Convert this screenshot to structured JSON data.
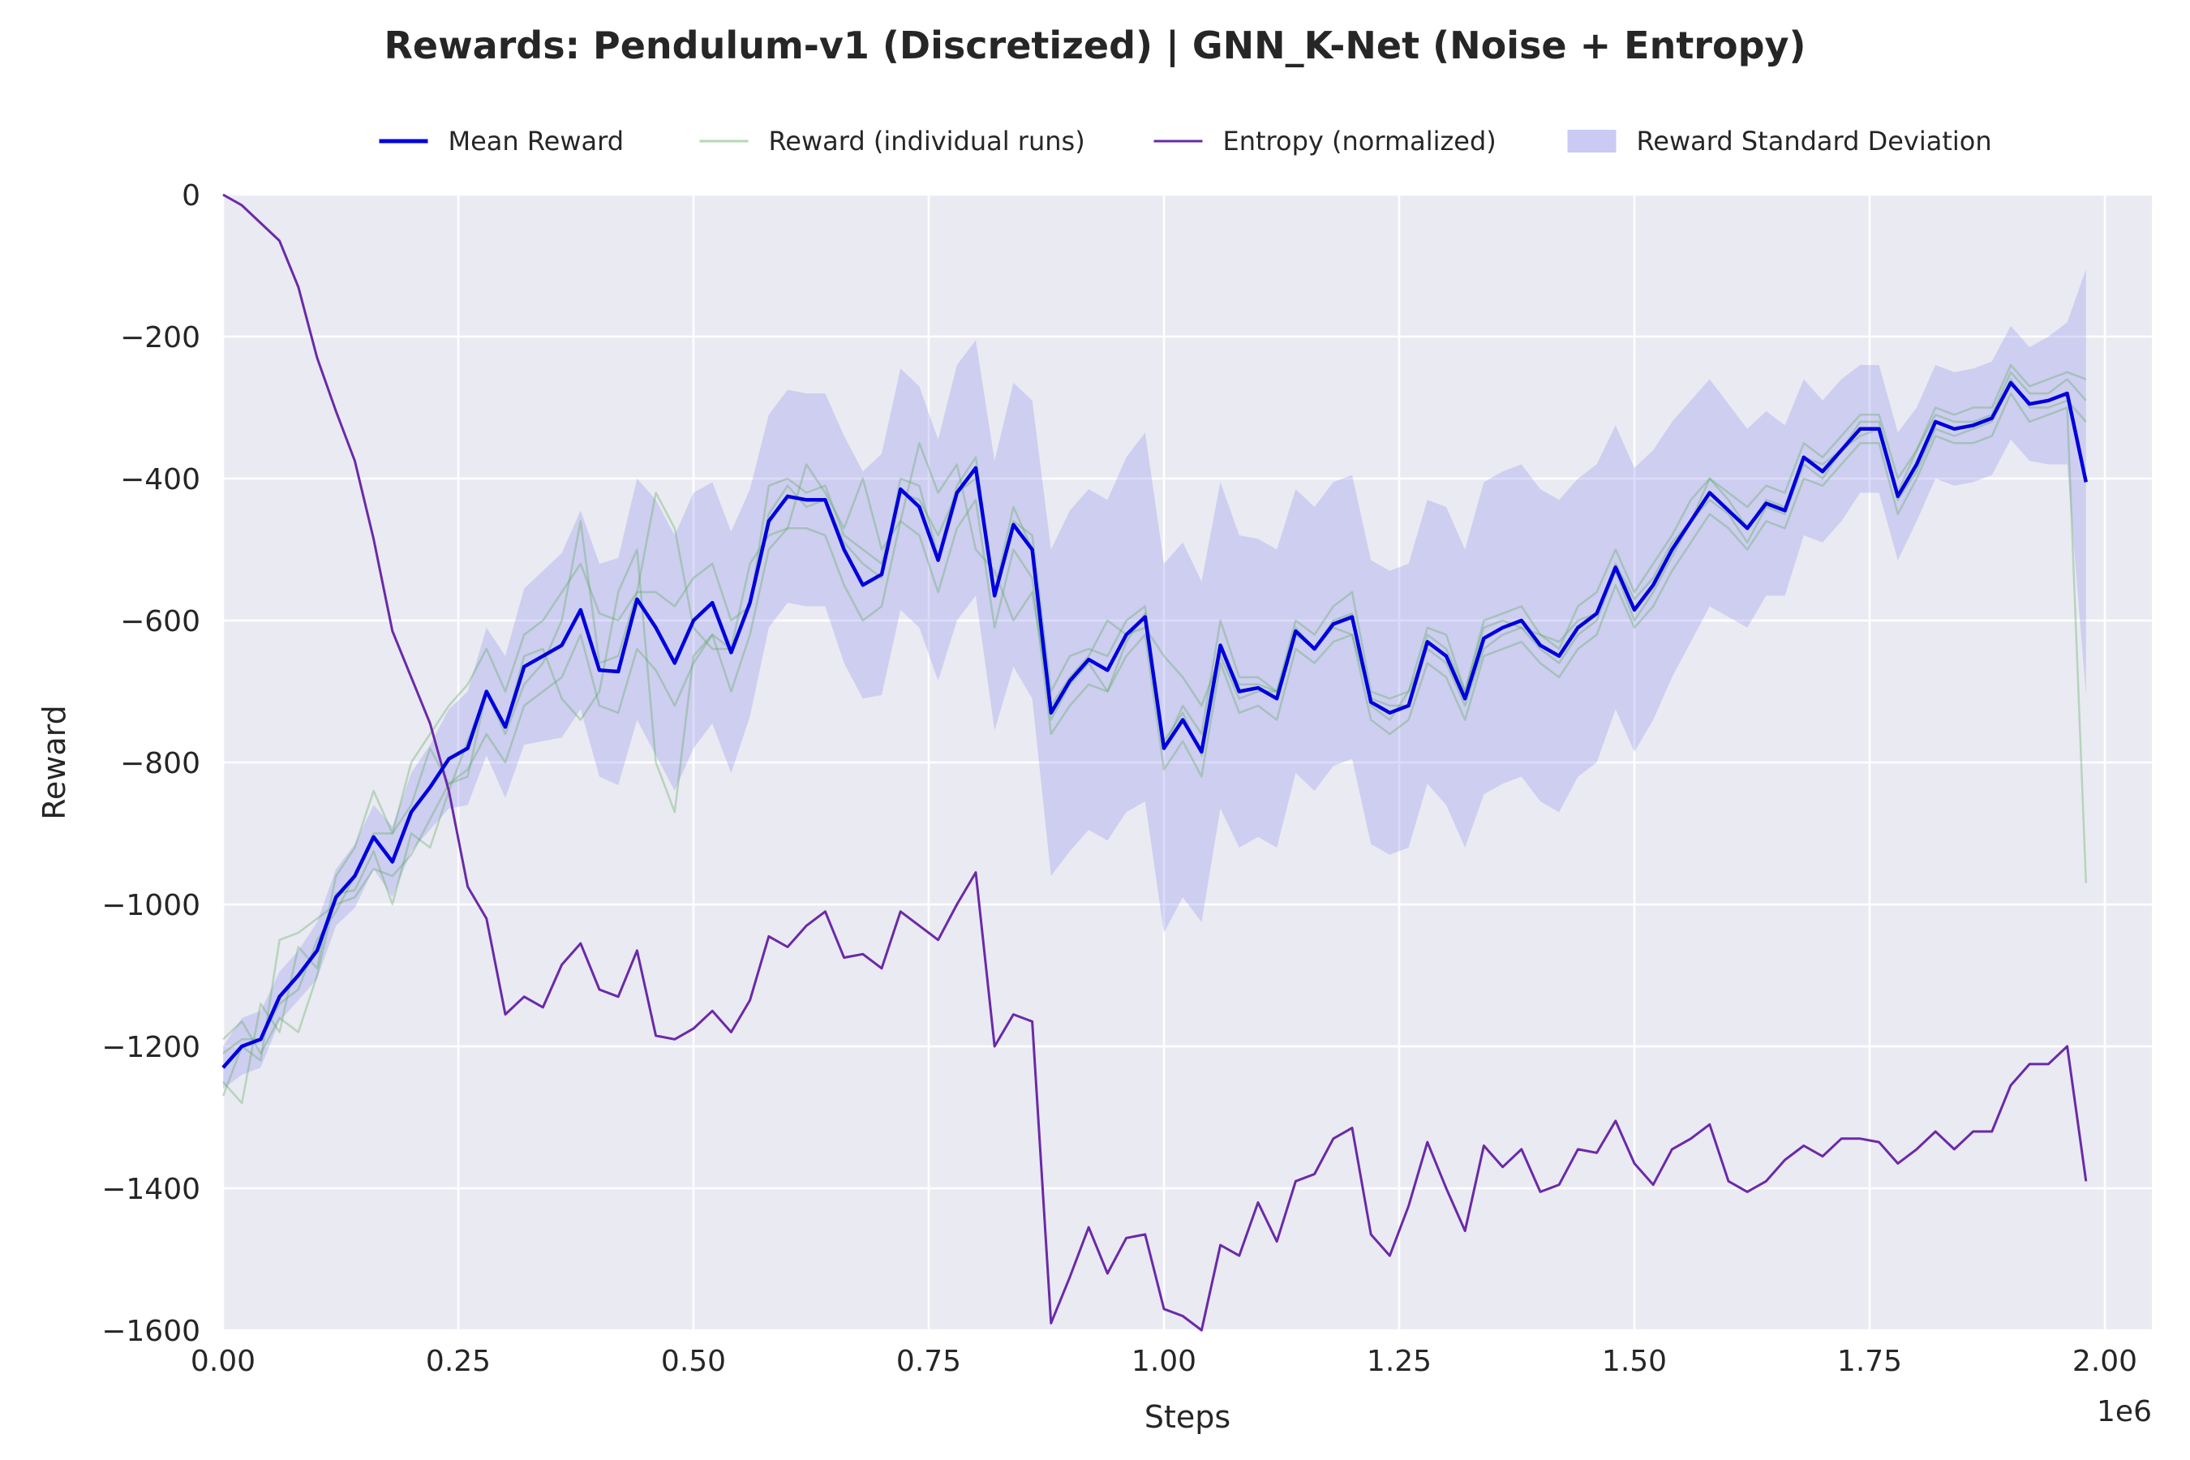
{
  "chart_data": {
    "type": "line",
    "title": "Rewards: Pendulum-v1 (Discretized) | GNN_K-Net (Noise + Entropy)",
    "xlabel": "Steps",
    "ylabel": "Reward",
    "x_offset_label": "1e6",
    "xlim": [
      0,
      2050000
    ],
    "ylim": [
      -1600,
      0
    ],
    "xticks": [
      0,
      250000,
      500000,
      750000,
      1000000,
      1250000,
      1500000,
      1750000,
      2000000
    ],
    "xtick_labels": [
      "0.00",
      "0.25",
      "0.50",
      "0.75",
      "1.00",
      "1.25",
      "1.50",
      "1.75",
      "2.00"
    ],
    "yticks": [
      0,
      -200,
      -400,
      -600,
      -800,
      -1000,
      -1200,
      -1400,
      -1600
    ],
    "ytick_labels": [
      "0",
      "−200",
      "−400",
      "−600",
      "−800",
      "−1000",
      "−1200",
      "−1400",
      "−1600"
    ],
    "grid": true,
    "legend_position": "top-center",
    "legend": [
      {
        "label": "Mean Reward",
        "kind": "line",
        "color": "#0000dd"
      },
      {
        "label": "Reward (individual runs)",
        "kind": "line",
        "color": "#7fbf7f"
      },
      {
        "label": "Entropy (normalized)",
        "kind": "line",
        "color": "#6a2aa8"
      },
      {
        "label": "Reward Standard Deviation",
        "kind": "band",
        "color": "#b4b4f0"
      }
    ],
    "colors": {
      "mean": "#0000dd",
      "runs": "#5aa85a",
      "entropy": "#6a2aa8",
      "band": "#9a9aee",
      "plot_bg": "#eaeaf2",
      "grid": "#ffffff"
    },
    "x_start": 0,
    "x_step": 20000,
    "series": [
      {
        "name": "Mean Reward",
        "values": [
          -1230,
          -1200,
          -1190,
          -1130,
          -1100,
          -1065,
          -990,
          -960,
          -905,
          -940,
          -870,
          -835,
          -795,
          -780,
          -700,
          -750,
          -665,
          -650,
          -635,
          -585,
          -670,
          -672,
          -570,
          -610,
          -660,
          -600,
          -575,
          -645,
          -575,
          -460,
          -425,
          -430,
          -430,
          -500,
          -550,
          -535,
          -415,
          -440,
          -515,
          -420,
          -385,
          -565,
          -465,
          -500,
          -730,
          -685,
          -655,
          -670,
          -620,
          -595,
          -780,
          -740,
          -785,
          -635,
          -700,
          -695,
          -710,
          -615,
          -640,
          -605,
          -595,
          -715,
          -730,
          -720,
          -630,
          -650,
          -710,
          -625,
          -610,
          -600,
          -635,
          -650,
          -610,
          -590,
          -525,
          -585,
          -550,
          -500,
          -460,
          -420,
          -445,
          -470,
          -435,
          -445,
          -370,
          -390,
          -360,
          -330,
          -330,
          -425,
          -380,
          -320,
          -330,
          -325,
          -315,
          -265,
          -295,
          -290,
          -280,
          -405
        ]
      },
      {
        "name": "Entropy (normalized)",
        "values": [
          0,
          -15,
          -40,
          -65,
          -130,
          -230,
          -305,
          -375,
          -485,
          -615,
          -680,
          -745,
          -840,
          -975,
          -1020,
          -1155,
          -1130,
          -1145,
          -1085,
          -1055,
          -1120,
          -1130,
          -1065,
          -1185,
          -1190,
          -1175,
          -1150,
          -1180,
          -1135,
          -1045,
          -1060,
          -1030,
          -1010,
          -1075,
          -1070,
          -1090,
          -1010,
          -1030,
          -1050,
          -1000,
          -955,
          -1200,
          -1155,
          -1165,
          -1590,
          -1525,
          -1455,
          -1520,
          -1470,
          -1465,
          -1570,
          -1580,
          -1600,
          -1480,
          -1495,
          -1420,
          -1475,
          -1390,
          -1380,
          -1330,
          -1315,
          -1465,
          -1495,
          -1425,
          -1335,
          -1400,
          -1460,
          -1340,
          -1370,
          -1345,
          -1405,
          -1395,
          -1345,
          -1350,
          -1305,
          -1365,
          -1395,
          -1345,
          -1330,
          -1310,
          -1390,
          -1405,
          -1390,
          -1360,
          -1340,
          -1355,
          -1330,
          -1330,
          -1335,
          -1365,
          -1345,
          -1320,
          -1345,
          -1320,
          -1320,
          -1255,
          -1225,
          -1225,
          -1200,
          -1390
        ]
      },
      {
        "name": "Reward (individual runs)",
        "values": [
          -1190,
          -1165,
          -1210,
          -1160,
          -1180,
          -1100,
          -985,
          -980,
          -925,
          -1000,
          -900,
          -920,
          -840,
          -770,
          -700,
          -750,
          -650,
          -640,
          -710,
          -740,
          -700,
          -560,
          -500,
          -800,
          -870,
          -650,
          -620,
          -640,
          -520,
          -480,
          -470,
          -380,
          -420,
          -470,
          -400,
          -500,
          -460,
          -350,
          -420,
          -380,
          -500,
          -530,
          -600,
          -560,
          -720,
          -680,
          -650,
          -600,
          -620,
          -610,
          -650,
          -680,
          -720,
          -650,
          -710,
          -700,
          -700,
          -620,
          -640,
          -600,
          -590,
          -720,
          -740,
          -700,
          -640,
          -660,
          -720,
          -640,
          -620,
          -610,
          -640,
          -660,
          -620,
          -600,
          -530,
          -600,
          -560,
          -510,
          -460,
          -430,
          -450,
          -490,
          -440,
          -450,
          -380,
          -400,
          -360,
          -340,
          -330,
          -430,
          -390,
          -330,
          -340,
          -330,
          -320,
          -260,
          -300,
          -300,
          -290,
          -320
        ]
      },
      {
        "name": "Reward (individual runs)",
        "values": [
          -1250,
          -1280,
          -1140,
          -1180,
          -1060,
          -1090,
          -960,
          -920,
          -840,
          -900,
          -800,
          -760,
          -720,
          -690,
          -640,
          -700,
          -620,
          -600,
          -560,
          -520,
          -590,
          -600,
          -560,
          -560,
          -580,
          -540,
          -520,
          -600,
          -580,
          -410,
          -400,
          -420,
          -410,
          -480,
          -500,
          -520,
          -420,
          -430,
          -480,
          -420,
          -400,
          -560,
          -460,
          -480,
          -700,
          -650,
          -640,
          -650,
          -600,
          -580,
          -780,
          -720,
          -760,
          -600,
          -680,
          -680,
          -700,
          -600,
          -620,
          -580,
          -560,
          -700,
          -710,
          -700,
          -610,
          -620,
          -700,
          -600,
          -590,
          -580,
          -620,
          -640,
          -580,
          -560,
          -500,
          -560,
          -520,
          -480,
          -430,
          -400,
          -420,
          -440,
          -410,
          -420,
          -350,
          -370,
          -340,
          -310,
          -310,
          -400,
          -360,
          -300,
          -310,
          -300,
          -300,
          -240,
          -270,
          -260,
          -250,
          -260
        ]
      },
      {
        "name": "Reward (individual runs)",
        "values": [
          -1270,
          -1200,
          -1220,
          -1050,
          -1040,
          -1020,
          -1000,
          -990,
          -950,
          -960,
          -930,
          -880,
          -830,
          -810,
          -760,
          -800,
          -720,
          -700,
          -680,
          -620,
          -720,
          -730,
          -640,
          -670,
          -720,
          -660,
          -620,
          -700,
          -620,
          -500,
          -470,
          -470,
          -480,
          -550,
          -600,
          -580,
          -460,
          -480,
          -560,
          -470,
          -430,
          -610,
          -500,
          -540,
          -760,
          -720,
          -690,
          -700,
          -650,
          -620,
          -810,
          -770,
          -820,
          -660,
          -730,
          -720,
          -740,
          -640,
          -660,
          -630,
          -620,
          -740,
          -760,
          -740,
          -660,
          -680,
          -740,
          -650,
          -640,
          -630,
          -660,
          -680,
          -640,
          -620,
          -550,
          -610,
          -580,
          -530,
          -490,
          -450,
          -470,
          -500,
          -460,
          -470,
          -400,
          -410,
          -380,
          -350,
          -350,
          -450,
          -400,
          -340,
          -350,
          -350,
          -340,
          -280,
          -320,
          -310,
          -300,
          -970
        ]
      },
      {
        "name": "Reward (individual runs)",
        "values": [
          -1210,
          -1190,
          -1190,
          -1140,
          -1120,
          -1050,
          -1010,
          -960,
          -900,
          -900,
          -860,
          -780,
          -830,
          -820,
          -700,
          -760,
          -690,
          -660,
          -600,
          -460,
          -660,
          -650,
          -560,
          -420,
          -470,
          -610,
          -640,
          -640,
          -580,
          -450,
          -410,
          -440,
          -430,
          -490,
          -520,
          -540,
          -400,
          -410,
          -510,
          -410,
          -370,
          -560,
          -440,
          -500,
          -740,
          -690,
          -660,
          -700,
          -630,
          -590,
          -770,
          -730,
          -790,
          -640,
          -690,
          -690,
          -700,
          -610,
          -640,
          -610,
          -620,
          -710,
          -720,
          -720,
          -620,
          -640,
          -700,
          -610,
          -600,
          -610,
          -620,
          -630,
          -600,
          -590,
          -520,
          -570,
          -540,
          -490,
          -460,
          -400,
          -430,
          -470,
          -430,
          -440,
          -370,
          -380,
          -360,
          -320,
          -320,
          -420,
          -360,
          -310,
          -320,
          -320,
          -310,
          -250,
          -280,
          -280,
          -260,
          -290
        ]
      }
    ],
    "std_dev": [
      30,
      40,
      40,
      35,
      35,
      40,
      40,
      45,
      45,
      50,
      55,
      60,
      70,
      80,
      90,
      100,
      110,
      120,
      130,
      140,
      150,
      160,
      170,
      180,
      180,
      180,
      170,
      170,
      160,
      150,
      150,
      150,
      150,
      160,
      160,
      170,
      170,
      170,
      170,
      180,
      180,
      190,
      200,
      210,
      230,
      240,
      240,
      240,
      250,
      260,
      260,
      250,
      240,
      230,
      220,
      210,
      210,
      200,
      200,
      200,
      200,
      200,
      200,
      200,
      200,
      210,
      210,
      220,
      220,
      220,
      220,
      220,
      210,
      210,
      200,
      200,
      190,
      180,
      170,
      160,
      150,
      140,
      130,
      120,
      110,
      100,
      100,
      90,
      90,
      90,
      80,
      80,
      80,
      80,
      80,
      80,
      80,
      90,
      100,
      300
    ]
  }
}
